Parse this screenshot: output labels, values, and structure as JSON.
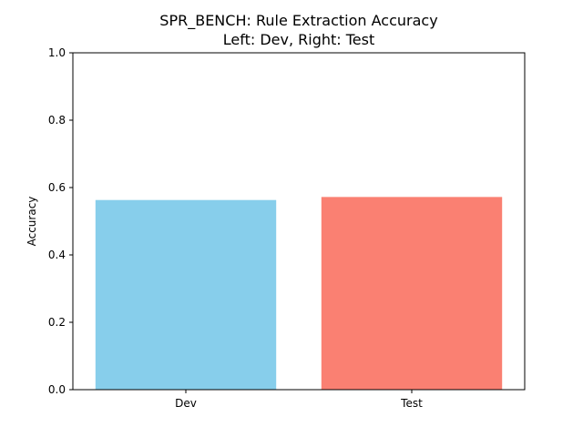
{
  "chart_data": {
    "type": "bar",
    "title": "SPR_BENCH: Rule Extraction Accuracy",
    "subtitle": "Left: Dev, Right: Test",
    "xlabel": "",
    "ylabel": "Accuracy",
    "categories": [
      "Dev",
      "Test"
    ],
    "values": [
      0.563,
      0.572
    ],
    "colors": [
      "#87CEEB",
      "#FA8072"
    ],
    "ylim": [
      0,
      1.0
    ],
    "yticks": [
      "0.0",
      "0.2",
      "0.4",
      "0.6",
      "0.8",
      "1.0"
    ],
    "grid": false,
    "legend": "none"
  }
}
